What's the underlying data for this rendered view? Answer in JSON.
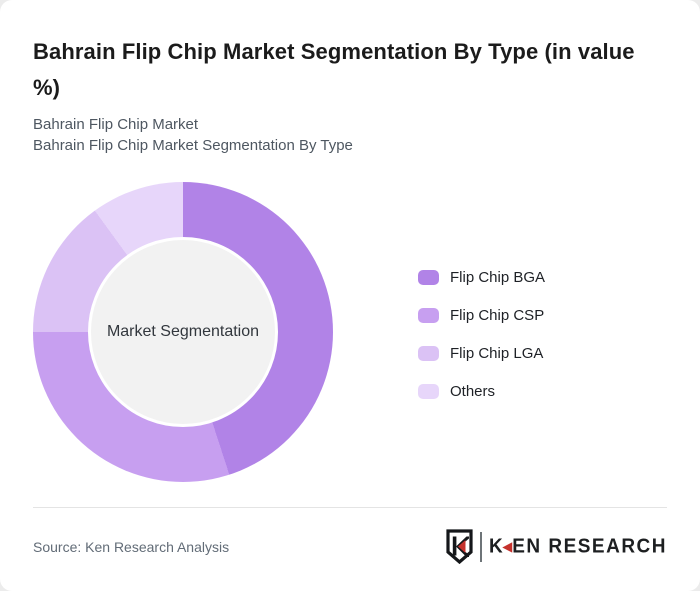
{
  "header": {
    "title": "Bahrain Flip Chip Market Segmentation By Type (in value %)",
    "subtitle_line1": "Bahrain Flip Chip Market",
    "subtitle_line2": "Bahrain Flip Chip Market Segmentation By Type"
  },
  "chart_data": {
    "type": "pie",
    "variant": "donut",
    "title": "Bahrain Flip Chip Market Segmentation By Type (in value %)",
    "center_label": "Market Segmentation",
    "categories": [
      "Flip Chip BGA",
      "Flip Chip CSP",
      "Flip Chip LGA",
      "Others"
    ],
    "values": [
      45,
      30,
      15,
      10
    ],
    "unit": "percent of value",
    "colors": [
      "#b183e7",
      "#c79ff0",
      "#dbc2f5",
      "#e7d6fa"
    ],
    "start_angle_deg": 0,
    "direction": "clockwise",
    "legend_position": "right",
    "hole_color": "#f2f2f2"
  },
  "footer": {
    "source": "Source: Ken Research Analysis",
    "logo": {
      "brand_k": "K",
      "brand_rest": "EN RESEARCH",
      "accent_color": "#c5322d"
    }
  },
  "colors": {
    "page_bg": "#ececec",
    "card_bg": "#ffffff",
    "title_text": "#1b1b1b",
    "subtitle_text": "#4e5761",
    "source_text": "#626c77",
    "divider": "#e4e4e4"
  }
}
